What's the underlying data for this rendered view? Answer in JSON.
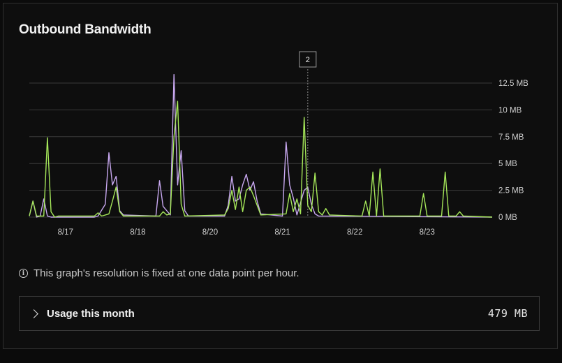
{
  "panel": {
    "title": "Outbound Bandwidth",
    "note": "This graph's resolution is fixed at one data point per hour.",
    "note_icon": "info-icon",
    "usage": {
      "label": "Usage this month",
      "value": "479 MB",
      "icon": "chevron-right-icon"
    }
  },
  "chart_data": {
    "type": "line",
    "title": "",
    "xlabel": "",
    "ylabel": "",
    "ylim": [
      0,
      12.5
    ],
    "y_ticks": [
      "0 MB",
      "2.5 MB",
      "5 MB",
      "7.5 MB",
      "10 MB",
      "12.5 MB"
    ],
    "y_tick_values": [
      0,
      2.5,
      5,
      7.5,
      10,
      12.5
    ],
    "x_ticks": [
      "8/17",
      "8/18",
      "8/20",
      "8/21",
      "8/22",
      "8/23"
    ],
    "x_tick_values": [
      0.5,
      1.5,
      2.5,
      3.5,
      4.5,
      5.5
    ],
    "x_range": [
      0,
      6.4
    ],
    "grid": true,
    "tooltip_label": "2",
    "tooltip_x": 3.85,
    "series": [
      {
        "color": "#c8a8f0",
        "points": [
          [
            0,
            0.1
          ],
          [
            0.05,
            1.5
          ],
          [
            0.1,
            0
          ],
          [
            0.15,
            0.1
          ],
          [
            0.2,
            1.7
          ],
          [
            0.25,
            0.1
          ],
          [
            0.3,
            0
          ],
          [
            0.9,
            0
          ],
          [
            0.95,
            0.1
          ],
          [
            1.05,
            1.2
          ],
          [
            1.1,
            6
          ],
          [
            1.15,
            3
          ],
          [
            1.2,
            3.8
          ],
          [
            1.25,
            0.6
          ],
          [
            1.3,
            0.2
          ],
          [
            1.75,
            0.1
          ],
          [
            1.8,
            3.4
          ],
          [
            1.85,
            1
          ],
          [
            1.95,
            0.2
          ],
          [
            2.0,
            13.3
          ],
          [
            2.05,
            3
          ],
          [
            2.1,
            6.2
          ],
          [
            2.15,
            0.6
          ],
          [
            2.2,
            0.1
          ],
          [
            2.7,
            0.1
          ],
          [
            2.75,
            1.1
          ],
          [
            2.8,
            3.8
          ],
          [
            2.85,
            1.5
          ],
          [
            2.9,
            1.7
          ],
          [
            2.95,
            3
          ],
          [
            3.0,
            4
          ],
          [
            3.05,
            2.5
          ],
          [
            3.1,
            3.3
          ],
          [
            3.15,
            1.5
          ],
          [
            3.2,
            0.3
          ],
          [
            3.5,
            0.1
          ],
          [
            3.55,
            7
          ],
          [
            3.6,
            3
          ],
          [
            3.65,
            1.8
          ],
          [
            3.7,
            0.2
          ],
          [
            3.8,
            2.5
          ],
          [
            3.85,
            2.8
          ],
          [
            3.9,
            1.2
          ],
          [
            3.95,
            0.3
          ],
          [
            4.0,
            0.1
          ],
          [
            6.4,
            0
          ]
        ]
      },
      {
        "color": "#a6e85a",
        "points": [
          [
            0,
            0.1
          ],
          [
            0.05,
            1.5
          ],
          [
            0.1,
            0.1
          ],
          [
            0.2,
            0.1
          ],
          [
            0.25,
            7.4
          ],
          [
            0.3,
            0.5
          ],
          [
            0.35,
            0
          ],
          [
            0.4,
            0.1
          ],
          [
            0.9,
            0.1
          ],
          [
            0.95,
            0.4
          ],
          [
            1.0,
            0.1
          ],
          [
            1.1,
            0.3
          ],
          [
            1.15,
            1.5
          ],
          [
            1.2,
            2.8
          ],
          [
            1.25,
            0.5
          ],
          [
            1.3,
            0.1
          ],
          [
            1.8,
            0.1
          ],
          [
            1.85,
            0.5
          ],
          [
            1.9,
            0.2
          ],
          [
            1.95,
            0.3
          ],
          [
            2.0,
            7.5
          ],
          [
            2.05,
            10.8
          ],
          [
            2.1,
            1.2
          ],
          [
            2.15,
            0.1
          ],
          [
            2.7,
            0.2
          ],
          [
            2.75,
            0.8
          ],
          [
            2.8,
            2.5
          ],
          [
            2.85,
            0.7
          ],
          [
            2.9,
            2.8
          ],
          [
            2.95,
            0.5
          ],
          [
            3.0,
            2.5
          ],
          [
            3.05,
            2.8
          ],
          [
            3.1,
            2
          ],
          [
            3.15,
            1.1
          ],
          [
            3.2,
            0.2
          ],
          [
            3.55,
            0.3
          ],
          [
            3.6,
            2.2
          ],
          [
            3.65,
            0.5
          ],
          [
            3.7,
            1.7
          ],
          [
            3.75,
            0.3
          ],
          [
            3.8,
            9.3
          ],
          [
            3.85,
            1.1
          ],
          [
            3.9,
            0.5
          ],
          [
            3.95,
            4.1
          ],
          [
            4.0,
            0.5
          ],
          [
            4.05,
            0.2
          ],
          [
            4.1,
            0.8
          ],
          [
            4.15,
            0.2
          ],
          [
            4.6,
            0.1
          ],
          [
            4.65,
            1.5
          ],
          [
            4.7,
            0.1
          ],
          [
            4.75,
            4.2
          ],
          [
            4.8,
            0.1
          ],
          [
            4.85,
            4.5
          ],
          [
            4.9,
            0.1
          ],
          [
            5.4,
            0.1
          ],
          [
            5.45,
            2.2
          ],
          [
            5.5,
            0.1
          ],
          [
            5.7,
            0.1
          ],
          [
            5.75,
            4.2
          ],
          [
            5.8,
            0.1
          ],
          [
            5.9,
            0.1
          ],
          [
            5.95,
            0.5
          ],
          [
            6.0,
            0.1
          ],
          [
            6.4,
            0
          ]
        ]
      }
    ]
  }
}
